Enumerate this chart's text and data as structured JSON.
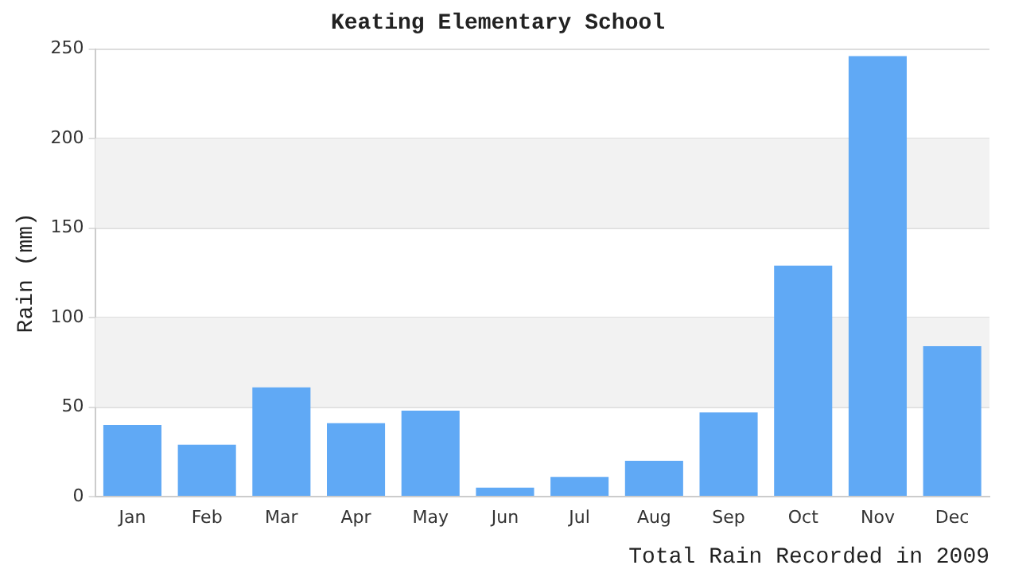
{
  "chart_data": {
    "type": "bar",
    "title": "Keating Elementary School",
    "xlabel": "Total Rain Recorded in 2009",
    "ylabel": "Rain (mm)",
    "categories": [
      "Jan",
      "Feb",
      "Mar",
      "Apr",
      "May",
      "Jun",
      "Jul",
      "Aug",
      "Sep",
      "Oct",
      "Nov",
      "Dec"
    ],
    "values": [
      40,
      29,
      61,
      41,
      48,
      5,
      11,
      20,
      47,
      129,
      246,
      84
    ],
    "color": "#60a9f5",
    "ylim": [
      0,
      250
    ],
    "yticks": [
      0,
      50,
      100,
      150,
      200,
      250
    ],
    "grid": "y",
    "legend": false
  }
}
